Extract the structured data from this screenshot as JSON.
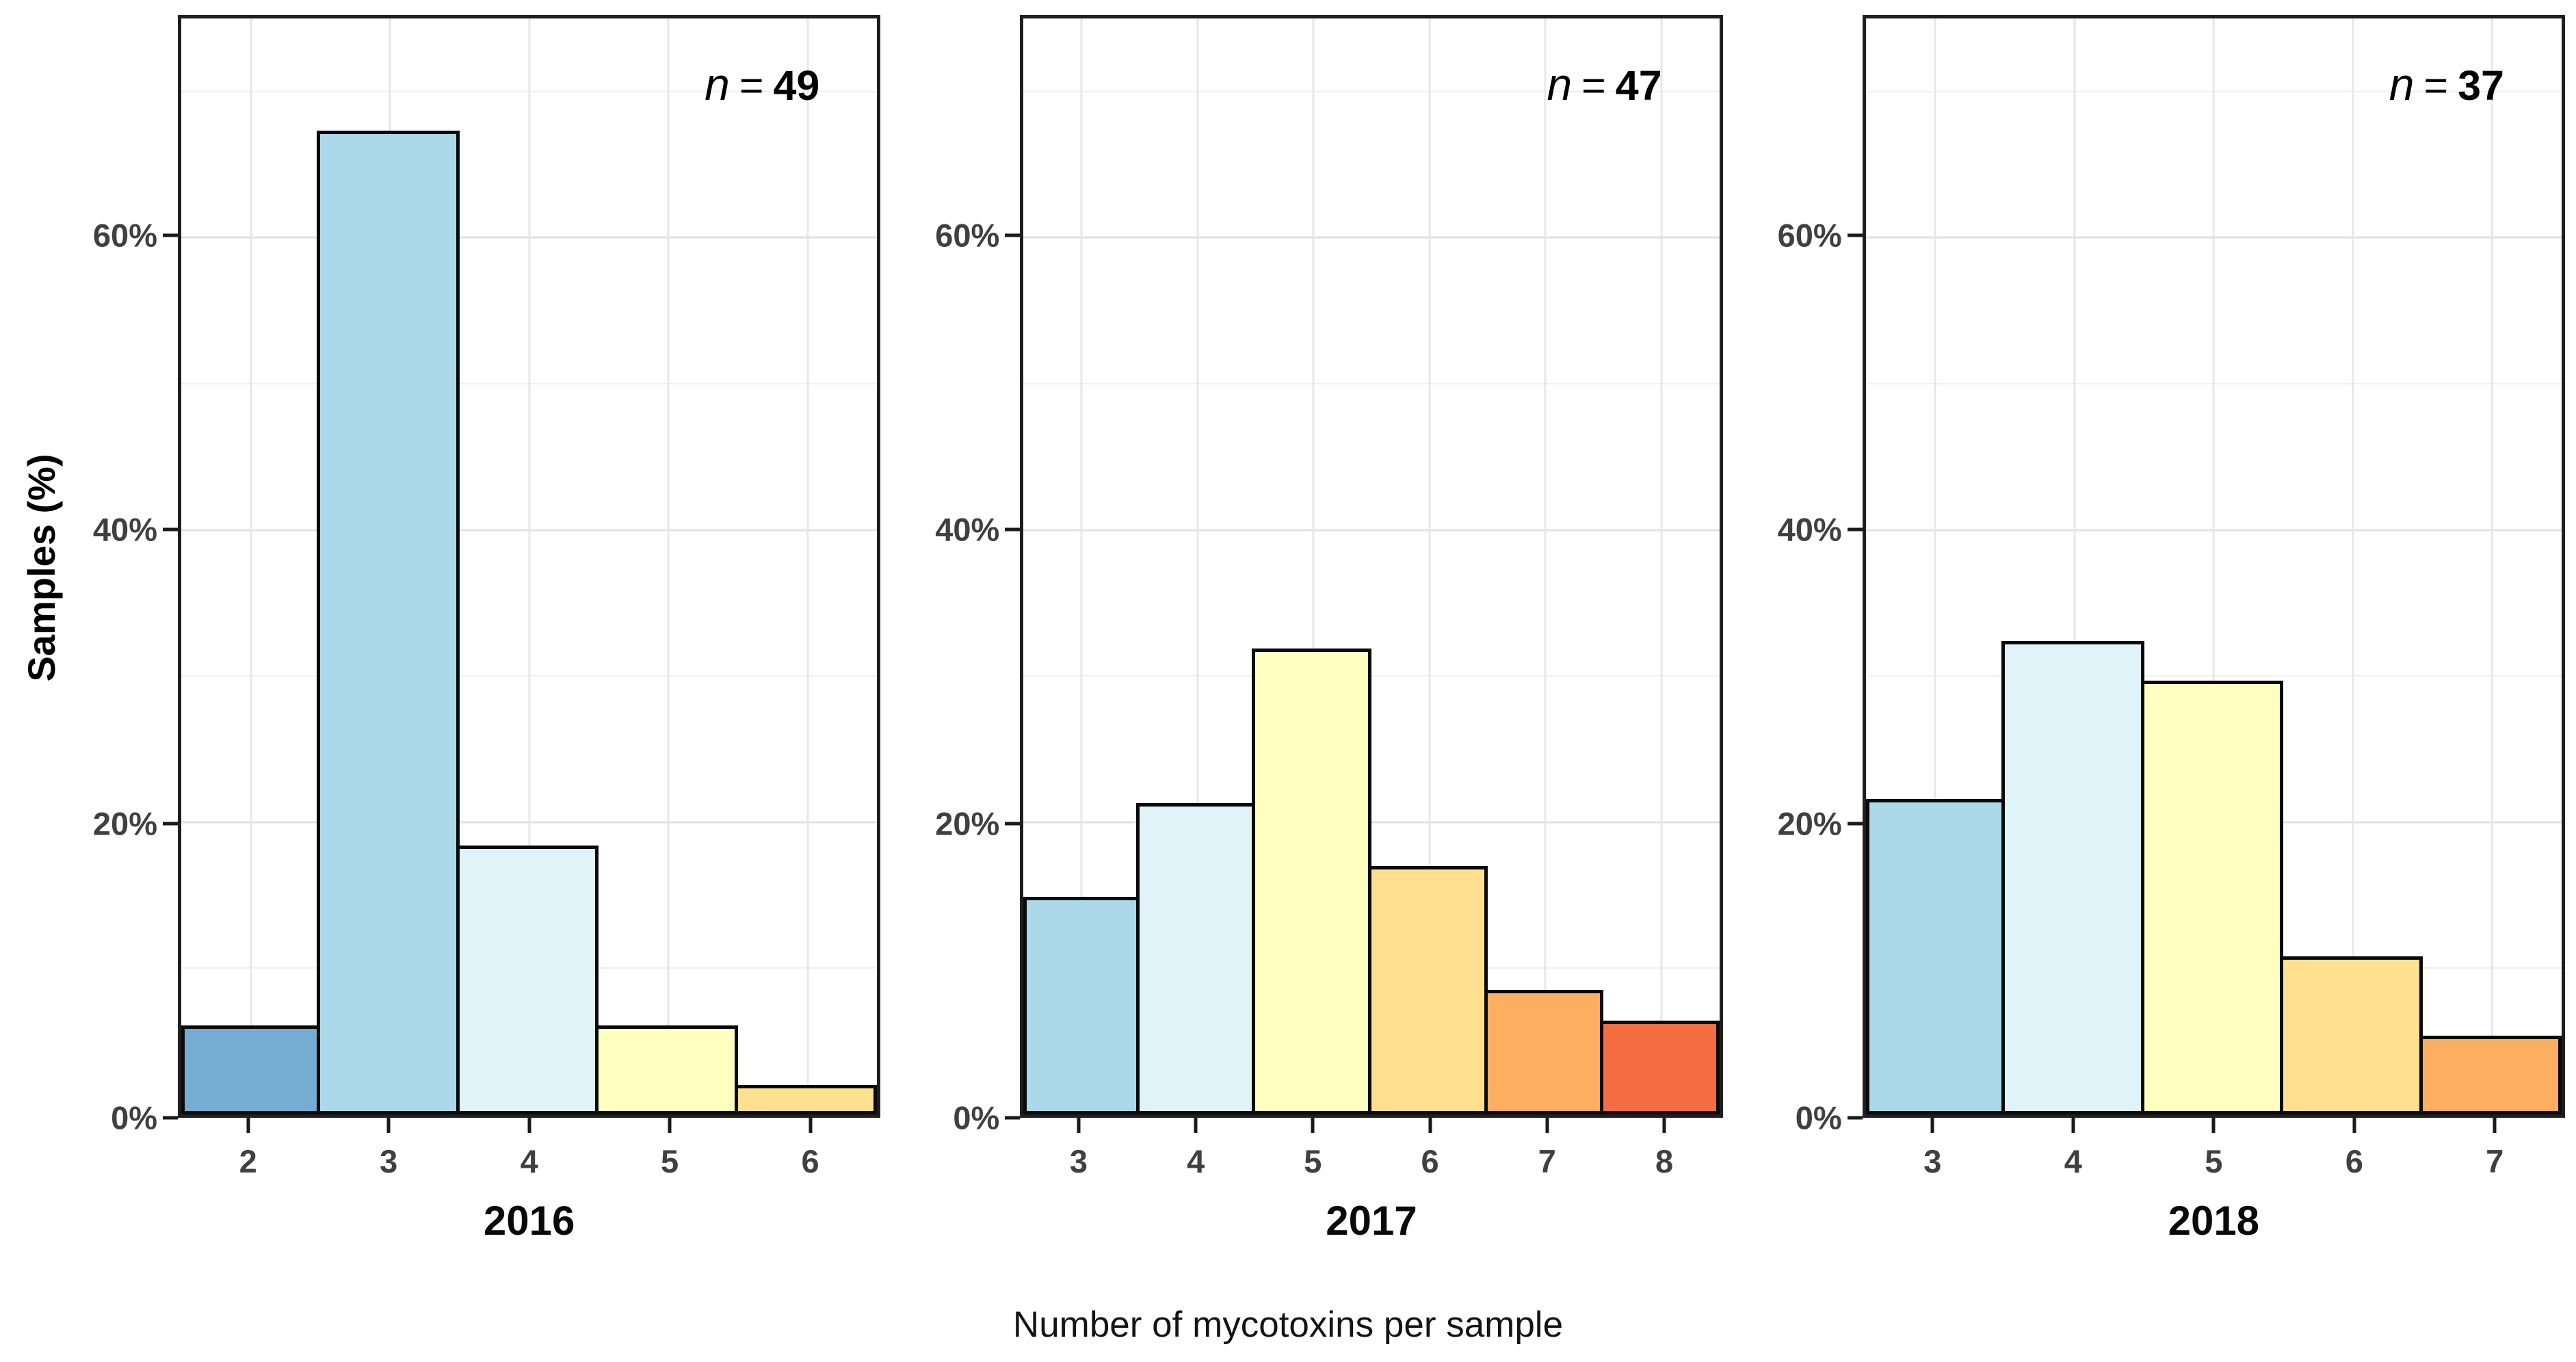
{
  "labels": {
    "xlabel": "Number of mycotoxins per sample",
    "ylabel": "Samples (%)"
  },
  "chart_data": {
    "type": "bar",
    "subtype": "faceted-histogram",
    "title": "",
    "xlabel": "Number of mycotoxins per sample",
    "ylabel": "Samples (%)",
    "ylim": [
      0,
      75
    ],
    "ytick_values": [
      0,
      20,
      40,
      60
    ],
    "ytick_labels": [
      "0%",
      "20%",
      "40%",
      "60%"
    ],
    "minor_gridline_values": [
      10,
      30,
      50,
      70
    ],
    "grid": "on",
    "legend_position": "none",
    "bar_outline_color": "#0a0a0a",
    "annotation_symbol": "n",
    "annotation_separator": "=",
    "color_by_mycotoxin_count": {
      "2": "#74add1",
      "3": "#abd9e9",
      "4": "#e0f3f8",
      "5": "#ffffbf",
      "6": "#fee090",
      "7": "#fdae61",
      "8": "#f46d43"
    },
    "panels": [
      {
        "year": "2016",
        "n": "49",
        "categories": [
          "2",
          "3",
          "4",
          "5",
          "6"
        ],
        "values_pct": [
          6.1,
          67.3,
          18.4,
          6.1,
          2.0
        ]
      },
      {
        "year": "2017",
        "n": "47",
        "categories": [
          "3",
          "4",
          "5",
          "6",
          "7",
          "8"
        ],
        "values_pct": [
          14.9,
          21.3,
          31.9,
          17.0,
          8.5,
          6.4
        ]
      },
      {
        "year": "2018",
        "n": "37",
        "categories": [
          "3",
          "4",
          "5",
          "6",
          "7"
        ],
        "values_pct": [
          21.6,
          32.4,
          29.7,
          10.8,
          5.4
        ]
      }
    ]
  }
}
